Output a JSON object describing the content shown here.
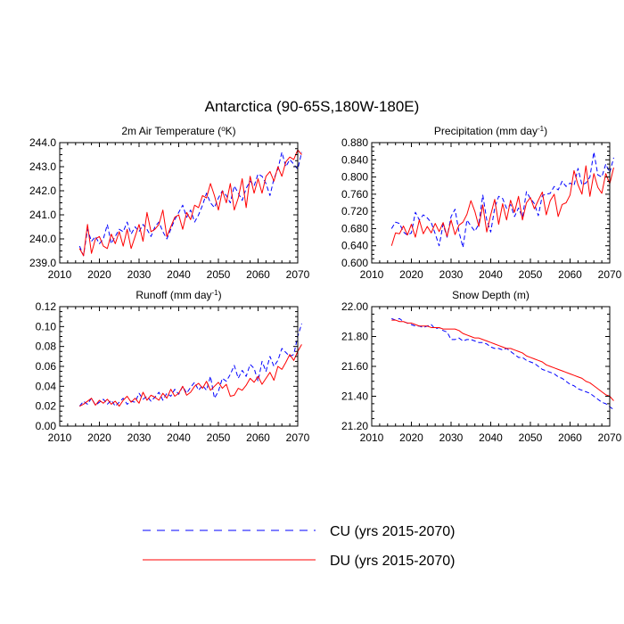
{
  "figure": {
    "title": "Antarctica (90-65S,180W-180E)"
  },
  "legend": {
    "entries": [
      {
        "key": "cu",
        "label": "CU (yrs 2015-2070)",
        "color": "#0000ff",
        "style": "dashed"
      },
      {
        "key": "du",
        "label": "DU (yrs 2015-2070)",
        "color": "#ff0000",
        "style": "solid"
      }
    ]
  },
  "chart_data": [
    {
      "id": "temp",
      "type": "line",
      "title": "2m Air Temperature (°K)",
      "title_main": "2m Air Temperature (",
      "title_sup": "o",
      "title_tail": "K)",
      "xlim": [
        2010,
        2070
      ],
      "ylim": [
        239.0,
        244.0
      ],
      "xticks": [
        2010,
        2020,
        2030,
        2040,
        2050,
        2060,
        2070
      ],
      "xtick_labels": [
        "2010",
        "2020",
        "2030",
        "2040",
        "2050",
        "2060",
        "2070"
      ],
      "yticks": [
        239.0,
        240.0,
        241.0,
        242.0,
        243.0,
        244.0
      ],
      "ytick_labels": [
        "239.0",
        "240.0",
        "241.0",
        "242.0",
        "243.0",
        "244.0"
      ],
      "x_start": 2015,
      "series": [
        {
          "name": "CU",
          "values": [
            239.7,
            239.3,
            240.4,
            239.9,
            240.1,
            239.8,
            240.0,
            240.6,
            239.8,
            240.1,
            240.4,
            240.3,
            240.7,
            240.2,
            240.5,
            240.3,
            240.6,
            240.4,
            240.1,
            240.5,
            240.7,
            240.3,
            240.0,
            240.4,
            240.8,
            241.1,
            241.4,
            240.9,
            241.2,
            240.7,
            241.0,
            241.4,
            241.9,
            241.5,
            241.3,
            241.7,
            242.0,
            241.8,
            241.5,
            242.2,
            241.9,
            241.6,
            242.1,
            242.4,
            242.2,
            242.7,
            242.6,
            242.3,
            241.8,
            242.5,
            242.9,
            243.6,
            243.0,
            243.3,
            243.1,
            242.9,
            243.6
          ]
        },
        {
          "name": "DU",
          "values": [
            239.6,
            239.3,
            240.6,
            239.4,
            240.0,
            240.1,
            239.7,
            239.6,
            240.2,
            239.8,
            240.3,
            239.7,
            240.4,
            239.6,
            240.1,
            240.6,
            239.9,
            241.1,
            240.3,
            240.4,
            240.6,
            241.2,
            240.1,
            240.5,
            240.9,
            241.0,
            240.4,
            241.1,
            240.8,
            241.4,
            241.3,
            241.8,
            241.7,
            242.3,
            241.8,
            241.2,
            242.0,
            241.5,
            242.3,
            241.2,
            241.7,
            242.5,
            241.3,
            242.6,
            241.9,
            242.5,
            241.9,
            242.6,
            242.8,
            242.4,
            243.0,
            242.6,
            243.2,
            243.4,
            243.3,
            243.7,
            243.5
          ]
        }
      ]
    },
    {
      "id": "precip",
      "type": "line",
      "title": "Precipitation (mm day-1)",
      "title_main": "Precipitation (mm day",
      "title_sup": "-1",
      "title_tail": ")",
      "xlim": [
        2010,
        2070
      ],
      "ylim": [
        0.6,
        0.88
      ],
      "xticks": [
        2010,
        2020,
        2030,
        2040,
        2050,
        2060,
        2070
      ],
      "xtick_labels": [
        "2010",
        "2020",
        "2030",
        "2040",
        "2050",
        "2060",
        "2070"
      ],
      "yticks": [
        0.6,
        0.64,
        0.68,
        0.72,
        0.76,
        0.8,
        0.84,
        0.88
      ],
      "ytick_labels": [
        "0.600",
        "0.640",
        "0.680",
        "0.720",
        "0.760",
        "0.800",
        "0.840",
        "0.880"
      ],
      "x_start": 2015,
      "series": [
        {
          "name": "CU",
          "values": [
            0.68,
            0.695,
            0.692,
            0.672,
            0.665,
            0.67,
            0.718,
            0.7,
            0.712,
            0.705,
            0.694,
            0.668,
            0.64,
            0.69,
            0.66,
            0.708,
            0.725,
            0.672,
            0.636,
            0.7,
            0.686,
            0.674,
            0.69,
            0.758,
            0.7,
            0.672,
            0.728,
            0.755,
            0.75,
            0.727,
            0.736,
            0.708,
            0.728,
            0.706,
            0.766,
            0.75,
            0.738,
            0.71,
            0.757,
            0.76,
            0.762,
            0.778,
            0.77,
            0.79,
            0.778,
            0.786,
            0.78,
            0.82,
            0.782,
            0.786,
            0.8,
            0.858,
            0.805,
            0.8,
            0.83,
            0.81,
            0.845
          ]
        },
        {
          "name": "DU",
          "values": [
            0.64,
            0.67,
            0.668,
            0.686,
            0.665,
            0.69,
            0.66,
            0.7,
            0.668,
            0.685,
            0.67,
            0.692,
            0.673,
            0.694,
            0.662,
            0.7,
            0.666,
            0.688,
            0.695,
            0.713,
            0.745,
            0.72,
            0.685,
            0.735,
            0.672,
            0.712,
            0.748,
            0.69,
            0.738,
            0.7,
            0.746,
            0.718,
            0.755,
            0.7,
            0.74,
            0.752,
            0.726,
            0.746,
            0.765,
            0.712,
            0.745,
            0.76,
            0.708,
            0.736,
            0.74,
            0.758,
            0.815,
            0.782,
            0.76,
            0.826,
            0.755,
            0.808,
            0.776,
            0.762,
            0.808,
            0.784,
            0.822
          ]
        }
      ]
    },
    {
      "id": "runoff",
      "type": "line",
      "title": "Runoff (mm day-1)",
      "title_main": "Runoff (mm day",
      "title_sup": "-1",
      "title_tail": ")",
      "xlim": [
        2010,
        2070
      ],
      "ylim": [
        0.0,
        0.12
      ],
      "xticks": [
        2010,
        2020,
        2030,
        2040,
        2050,
        2060,
        2070
      ],
      "xtick_labels": [
        "2010",
        "2020",
        "2030",
        "2040",
        "2050",
        "2060",
        "2070"
      ],
      "yticks": [
        0.0,
        0.02,
        0.04,
        0.06,
        0.08,
        0.1,
        0.12
      ],
      "ytick_labels": [
        "0.00",
        "0.02",
        "0.04",
        "0.06",
        "0.08",
        "0.10",
        "0.12"
      ],
      "x_start": 2015,
      "series": [
        {
          "name": "CU",
          "values": [
            0.02,
            0.025,
            0.022,
            0.028,
            0.021,
            0.024,
            0.027,
            0.022,
            0.026,
            0.02,
            0.024,
            0.028,
            0.022,
            0.025,
            0.024,
            0.033,
            0.027,
            0.03,
            0.025,
            0.029,
            0.034,
            0.026,
            0.033,
            0.03,
            0.037,
            0.032,
            0.04,
            0.033,
            0.039,
            0.044,
            0.036,
            0.041,
            0.036,
            0.05,
            0.028,
            0.035,
            0.048,
            0.045,
            0.052,
            0.061,
            0.048,
            0.056,
            0.05,
            0.062,
            0.058,
            0.045,
            0.065,
            0.055,
            0.07,
            0.06,
            0.066,
            0.078,
            0.074,
            0.07,
            0.072,
            0.09,
            0.103
          ]
        },
        {
          "name": "DU",
          "values": [
            0.02,
            0.022,
            0.025,
            0.028,
            0.021,
            0.026,
            0.023,
            0.027,
            0.022,
            0.025,
            0.02,
            0.026,
            0.03,
            0.024,
            0.028,
            0.023,
            0.034,
            0.026,
            0.031,
            0.029,
            0.026,
            0.033,
            0.028,
            0.037,
            0.03,
            0.033,
            0.04,
            0.031,
            0.034,
            0.04,
            0.043,
            0.038,
            0.045,
            0.036,
            0.04,
            0.044,
            0.038,
            0.042,
            0.03,
            0.031,
            0.038,
            0.036,
            0.041,
            0.048,
            0.044,
            0.05,
            0.042,
            0.048,
            0.054,
            0.046,
            0.06,
            0.057,
            0.064,
            0.072,
            0.066,
            0.075,
            0.082
          ]
        }
      ]
    },
    {
      "id": "snow",
      "type": "line",
      "title": "Snow Depth (m)",
      "title_main": "Snow Depth (m)",
      "title_sup": "",
      "title_tail": "",
      "xlim": [
        2010,
        2070
      ],
      "ylim": [
        21.2,
        22.0
      ],
      "xticks": [
        2010,
        2020,
        2030,
        2040,
        2050,
        2060,
        2070
      ],
      "xtick_labels": [
        "2010",
        "2020",
        "2030",
        "2040",
        "2050",
        "2060",
        "2070"
      ],
      "yticks": [
        21.2,
        21.4,
        21.6,
        21.8,
        22.0
      ],
      "ytick_labels": [
        "21.20",
        "21.40",
        "21.60",
        "21.80",
        "22.00"
      ],
      "x_start": 2015,
      "series": [
        {
          "name": "CU",
          "values": [
            21.92,
            21.91,
            21.92,
            21.9,
            21.89,
            21.88,
            21.87,
            21.87,
            21.86,
            21.87,
            21.88,
            21.85,
            21.86,
            21.84,
            21.83,
            21.78,
            21.78,
            21.79,
            21.77,
            21.78,
            21.78,
            21.77,
            21.76,
            21.76,
            21.75,
            21.73,
            21.72,
            21.72,
            21.71,
            21.72,
            21.7,
            21.68,
            21.66,
            21.66,
            21.64,
            21.63,
            21.62,
            21.6,
            21.58,
            21.57,
            21.56,
            21.55,
            21.53,
            21.52,
            21.5,
            21.48,
            21.47,
            21.45,
            21.44,
            21.43,
            21.42,
            21.4,
            21.38,
            21.36,
            21.35,
            21.33,
            21.31
          ]
        },
        {
          "name": "DU",
          "values": [
            21.91,
            21.91,
            21.9,
            21.9,
            21.89,
            21.89,
            21.88,
            21.87,
            21.87,
            21.87,
            21.86,
            21.86,
            21.86,
            21.85,
            21.85,
            21.85,
            21.85,
            21.84,
            21.82,
            21.81,
            21.8,
            21.79,
            21.79,
            21.78,
            21.77,
            21.76,
            21.75,
            21.74,
            21.73,
            21.72,
            21.72,
            21.71,
            21.7,
            21.69,
            21.67,
            21.66,
            21.65,
            21.64,
            21.63,
            21.61,
            21.6,
            21.59,
            21.58,
            21.57,
            21.56,
            21.55,
            21.54,
            21.53,
            21.52,
            21.5,
            21.49,
            21.47,
            21.45,
            21.43,
            21.41,
            21.4,
            21.37
          ]
        }
      ]
    }
  ]
}
